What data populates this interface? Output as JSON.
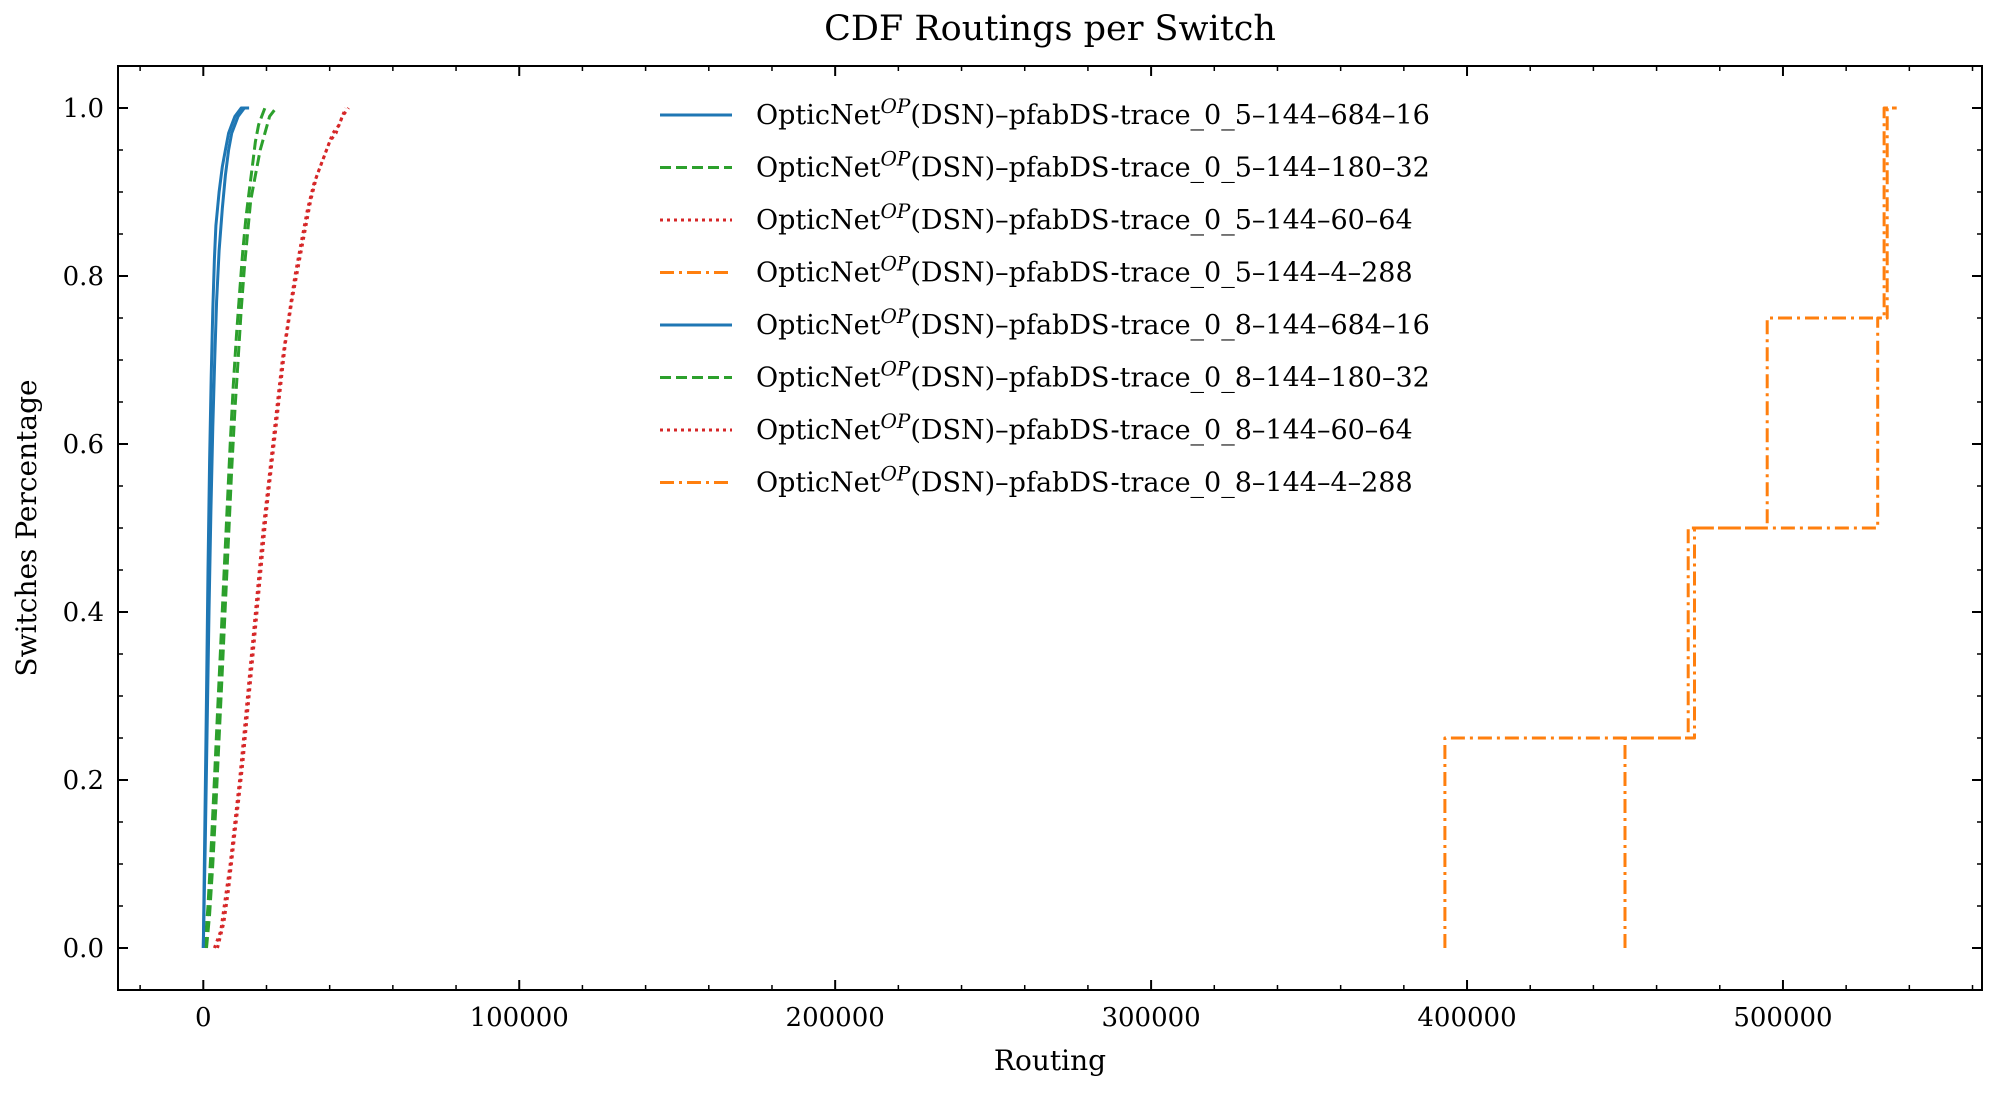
{
  "chart_data": {
    "type": "line",
    "title": "CDF Routings per Switch",
    "xlabel": "Routing",
    "ylabel": "Switches Percentage",
    "xlim": [
      -27000,
      563000
    ],
    "ylim": [
      -0.05,
      1.05
    ],
    "xticks": [
      0,
      100000,
      200000,
      300000,
      400000,
      500000
    ],
    "xtick_labels": [
      "0",
      "100000",
      "200000",
      "300000",
      "400000",
      "500000"
    ],
    "yticks": [
      0.0,
      0.2,
      0.4,
      0.6,
      0.8,
      1.0
    ],
    "ytick_labels": [
      "0.0",
      "0.2",
      "0.4",
      "0.6",
      "0.8",
      "1.0"
    ],
    "grid": false,
    "legend_position": "top-center",
    "series": [
      {
        "name": "OpticNet^OP(DSN)–pfabDS-trace_0_5–144–684–16",
        "legend_parts": [
          "OpticNet",
          "OP",
          "(DSN)–pfabDS-trace_0_5–144–684–16"
        ],
        "color": "#1f77b4",
        "style": "solid",
        "step": false,
        "x": [
          0,
          500,
          1000,
          1500,
          2000,
          2500,
          3000,
          3500,
          4000,
          5000,
          6000,
          7000,
          8000,
          9000,
          10000,
          11000,
          12000,
          13000
        ],
        "y": [
          0,
          0.15,
          0.3,
          0.45,
          0.58,
          0.68,
          0.76,
          0.82,
          0.86,
          0.9,
          0.93,
          0.95,
          0.97,
          0.98,
          0.99,
          0.995,
          1.0,
          1.0
        ]
      },
      {
        "name": "OpticNet^OP(DSN)–pfabDS-trace_0_5–144–180–32",
        "legend_parts": [
          "OpticNet",
          "OP",
          "(DSN)–pfabDS-trace_0_5–144–180–32"
        ],
        "color": "#2ca02c",
        "style": "dashed",
        "step": false,
        "x": [
          500,
          1500,
          2500,
          3500,
          4500,
          5500,
          6500,
          7500,
          8500,
          9500,
          10500,
          11500,
          12500,
          13500,
          14500,
          15500,
          16500,
          17500,
          18500,
          19500
        ],
        "y": [
          0,
          0.05,
          0.12,
          0.2,
          0.28,
          0.36,
          0.44,
          0.52,
          0.6,
          0.67,
          0.73,
          0.78,
          0.83,
          0.87,
          0.9,
          0.93,
          0.96,
          0.98,
          0.99,
          1.0
        ]
      },
      {
        "name": "OpticNet^OP(DSN)–pfabDS-trace_0_5–144–60–64",
        "legend_parts": [
          "OpticNet",
          "OP",
          "(DSN)–pfabDS-trace_0_5–144–60–64"
        ],
        "color": "#d62728",
        "style": "dotted",
        "step": false,
        "x": [
          3500,
          5500,
          7000,
          8500,
          10000,
          11500,
          13000,
          14500,
          16000,
          17500,
          19000,
          20500,
          22000,
          23500,
          25000,
          27000,
          29000,
          31000,
          33000,
          35000,
          37000,
          39000,
          41000,
          43000,
          45000
        ],
        "y": [
          0,
          0.02,
          0.06,
          0.1,
          0.15,
          0.2,
          0.26,
          0.32,
          0.38,
          0.44,
          0.5,
          0.55,
          0.6,
          0.65,
          0.7,
          0.75,
          0.8,
          0.84,
          0.88,
          0.91,
          0.93,
          0.95,
          0.97,
          0.98,
          1.0
        ]
      },
      {
        "name": "OpticNet^OP(DSN)–pfabDS-trace_0_5–144–4–288",
        "legend_parts": [
          "OpticNet",
          "OP",
          "(DSN)–pfabDS-trace_0_5–144–4–288"
        ],
        "color": "#ff7f0e",
        "style": "dashdot",
        "step": true,
        "x": [
          393000,
          393000,
          470000,
          470000,
          530000,
          530000,
          532000,
          532000,
          535000
        ],
        "y": [
          0,
          0.25,
          0.25,
          0.5,
          0.5,
          0.75,
          0.75,
          1.0,
          1.0
        ]
      },
      {
        "name": "OpticNet^OP(DSN)–pfabDS-trace_0_8–144–684–16",
        "legend_parts": [
          "OpticNet",
          "OP",
          "(DSN)–pfabDS-trace_0_8–144–684–16"
        ],
        "color": "#1f77b4",
        "style": "solid",
        "step": false,
        "x": [
          0,
          600,
          1200,
          1800,
          2400,
          3000,
          3600,
          4200,
          5000,
          6000,
          7000,
          8000,
          9000,
          10000,
          11000,
          12000,
          13000,
          14500
        ],
        "y": [
          0,
          0.12,
          0.26,
          0.4,
          0.52,
          0.62,
          0.7,
          0.77,
          0.83,
          0.88,
          0.92,
          0.95,
          0.97,
          0.98,
          0.99,
          0.995,
          1.0,
          1.0
        ]
      },
      {
        "name": "OpticNet^OP(DSN)–pfabDS-trace_0_8–144–180–32",
        "legend_parts": [
          "OpticNet",
          "OP",
          "(DSN)–pfabDS-trace_0_8–144–180–32"
        ],
        "color": "#2ca02c",
        "style": "dashed",
        "step": false,
        "x": [
          1000,
          2000,
          3000,
          4000,
          5000,
          6000,
          7000,
          8000,
          9000,
          10000,
          11000,
          12000,
          13000,
          14000,
          15000,
          16500,
          18000,
          19500,
          21000,
          23000
        ],
        "y": [
          0,
          0.04,
          0.1,
          0.17,
          0.25,
          0.33,
          0.41,
          0.49,
          0.57,
          0.64,
          0.7,
          0.76,
          0.81,
          0.85,
          0.89,
          0.92,
          0.95,
          0.97,
          0.99,
          1.0
        ]
      },
      {
        "name": "OpticNet^OP(DSN)–pfabDS-trace_0_8–144–60–64",
        "legend_parts": [
          "OpticNet",
          "OP",
          "(DSN)–pfabDS-trace_0_8–144–60–64"
        ],
        "color": "#d62728",
        "style": "dotted",
        "step": false,
        "x": [
          4500,
          6500,
          8000,
          9500,
          11000,
          12500,
          14000,
          15500,
          17000,
          18500,
          20000,
          21500,
          23000,
          24500,
          26000,
          28000,
          30000,
          32000,
          34000,
          36000,
          38000,
          40000,
          42000,
          44000,
          46000
        ],
        "y": [
          0,
          0.03,
          0.07,
          0.12,
          0.17,
          0.22,
          0.28,
          0.34,
          0.4,
          0.46,
          0.52,
          0.57,
          0.62,
          0.67,
          0.72,
          0.77,
          0.81,
          0.85,
          0.89,
          0.92,
          0.94,
          0.96,
          0.97,
          0.99,
          1.0
        ]
      },
      {
        "name": "OpticNet^OP(DSN)–pfabDS-trace_0_8–144–4–288",
        "legend_parts": [
          "OpticNet",
          "OP",
          "(DSN)–pfabDS-trace_0_8–144–4–288"
        ],
        "color": "#ff7f0e",
        "style": "dashdot",
        "step": true,
        "x": [
          450000,
          450000,
          472000,
          472000,
          495000,
          495000,
          533000,
          533000,
          536000
        ],
        "y": [
          0,
          0.25,
          0.25,
          0.5,
          0.5,
          0.75,
          0.75,
          1.0,
          1.0
        ]
      }
    ]
  }
}
